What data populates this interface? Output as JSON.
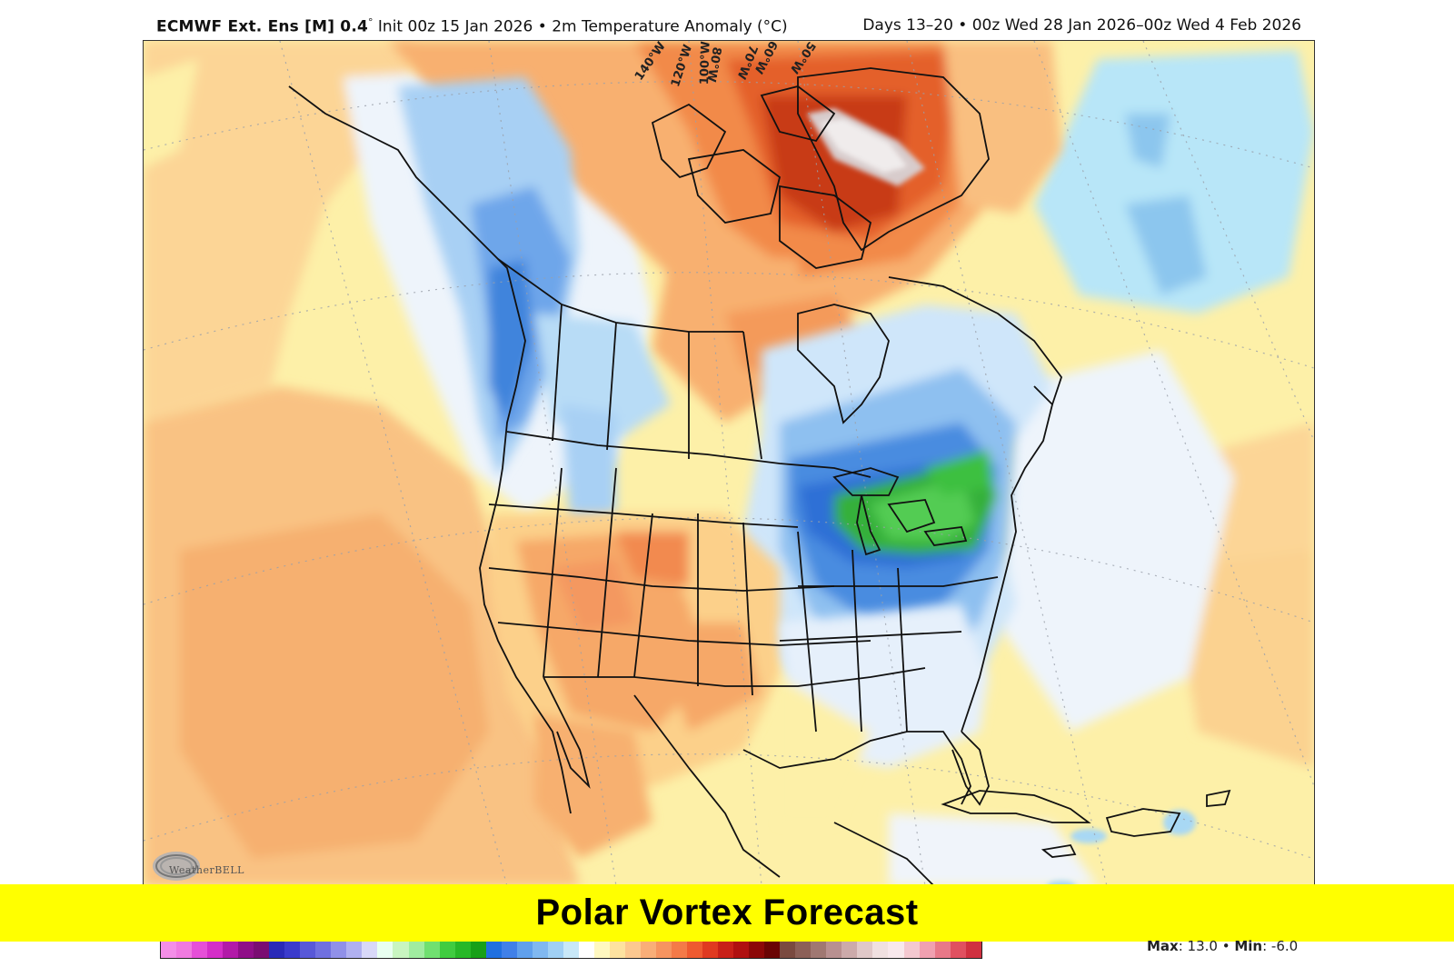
{
  "header": {
    "model_name": "ECMWF Ext. Ens [M] 0.4",
    "model_res_unit": "°",
    "init_text": " Init 00z 15 Jan 2026 • 2m Temperature Anomaly (°C)",
    "valid_text": "Days 13–20 • 00z Wed 28 Jan 2026–00z Wed 4 Feb 2026"
  },
  "map": {
    "region": "North America",
    "variable": "2m Temperature Anomaly (°C)",
    "longitude_labels": [
      "140°W",
      "120°W",
      "100°W",
      "80°W",
      "70°W",
      "60°W",
      "50°W"
    ],
    "highlights": [
      {
        "area": "Great Lakes / Northeast US",
        "anomaly": "strong cold (green/blue)"
      },
      {
        "area": "Greenland / Baffin Bay",
        "anomaly": "strong warm (red/white)"
      },
      {
        "area": "Western US / Mexico",
        "anomaly": "warm (orange)"
      },
      {
        "area": "Pacific Northwest / Western Canada / Alaska",
        "anomaly": "cold (blue)"
      }
    ],
    "logo_text": "WeatherBELL"
  },
  "banner": {
    "title": "Polar Vortex Forecast",
    "bg_color": "#ffff00"
  },
  "colorbar": {
    "colors": [
      "#f48ee8",
      "#f07ae0",
      "#e64fd8",
      "#d42ec8",
      "#b21aa8",
      "#8f0f88",
      "#7a0d72",
      "#2a2ab8",
      "#3b3bcc",
      "#5858d8",
      "#7070e0",
      "#9090e8",
      "#b0b0f0",
      "#d8d8f8",
      "#e8fff0",
      "#c8f5c0",
      "#a0eca0",
      "#70e070",
      "#40cc40",
      "#28b828",
      "#18a018",
      "#2070e0",
      "#4080e8",
      "#60a0ec",
      "#80b8f0",
      "#a0d0f4",
      "#c8e8f8",
      "#ffffff",
      "#fff8c0",
      "#fde2a0",
      "#fcc890",
      "#f9ae78",
      "#f69460",
      "#f47a48",
      "#ee5a30",
      "#e03a20",
      "#c82018",
      "#b01010",
      "#8c0808",
      "#6a0404",
      "#7a4a40",
      "#8c6058",
      "#a07872",
      "#b89090",
      "#ccaaaa",
      "#e0c8c8",
      "#f0e0e0",
      "#f8e8ec",
      "#f4c8d0",
      "#f0a0b0",
      "#e87888",
      "#e05060",
      "#d03040"
    ]
  },
  "stats": {
    "max_label": "Max",
    "max_value": ": 13.0 • ",
    "min_label": "Min",
    "min_value": ": -6.0"
  }
}
